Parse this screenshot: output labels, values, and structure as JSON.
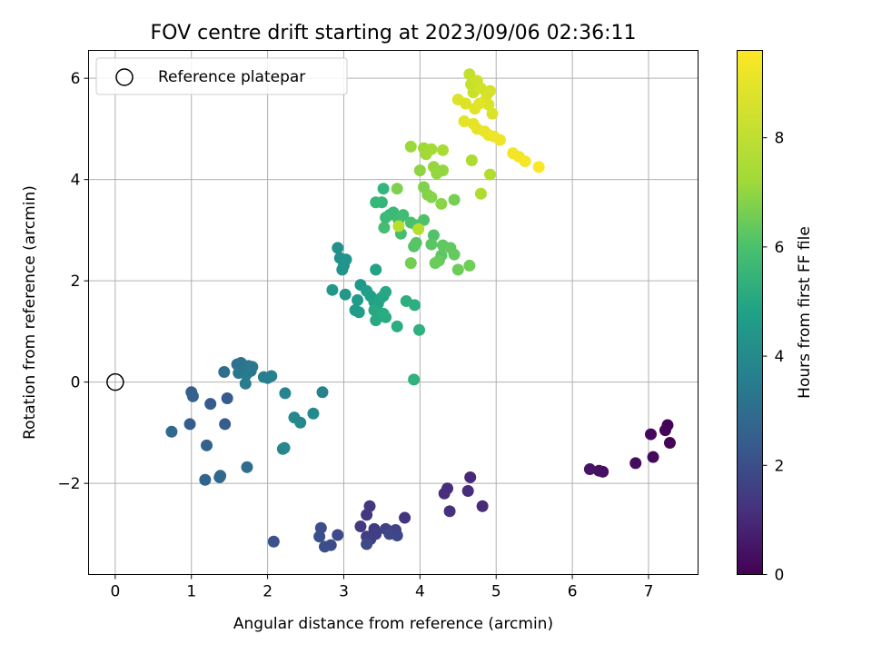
{
  "chart_data": {
    "type": "scatter",
    "title": "FOV centre drift starting at 2023/09/06 02:36:11",
    "xlabel": "Angular distance from reference (arcmin)",
    "ylabel": "Rotation from reference (arcmin)",
    "xlim": [
      -0.35,
      7.65
    ],
    "ylim": [
      -3.8,
      6.55
    ],
    "xticks": [
      "0",
      "1",
      "2",
      "3",
      "4",
      "5",
      "6",
      "7"
    ],
    "yticks": [
      "−2",
      "0",
      "2",
      "4",
      "6"
    ],
    "grid": true,
    "legend": {
      "position": "top-left",
      "entries": [
        "Reference platepar"
      ]
    },
    "reference_point": {
      "x": 0,
      "y": 0
    },
    "colorbar": {
      "label": "Hours from first FF file",
      "range": [
        0,
        9.6
      ],
      "ticks": [
        "0",
        "2",
        "4",
        "6",
        "8"
      ],
      "colormap": "viridis"
    },
    "points": [
      {
        "x": 7.25,
        "y": -0.85,
        "t": 0.05
      },
      {
        "x": 7.22,
        "y": -0.95,
        "t": 0.1
      },
      {
        "x": 7.28,
        "y": -1.2,
        "t": 0.15
      },
      {
        "x": 7.03,
        "y": -1.03,
        "t": 0.2
      },
      {
        "x": 7.06,
        "y": -1.48,
        "t": 0.25
      },
      {
        "x": 6.83,
        "y": -1.6,
        "t": 0.3
      },
      {
        "x": 6.4,
        "y": -1.77,
        "t": 0.4
      },
      {
        "x": 6.35,
        "y": -1.75,
        "t": 0.45
      },
      {
        "x": 6.23,
        "y": -1.72,
        "t": 0.5
      },
      {
        "x": 4.66,
        "y": -1.88,
        "t": 1.1
      },
      {
        "x": 4.82,
        "y": -2.45,
        "t": 1.15
      },
      {
        "x": 4.63,
        "y": -2.15,
        "t": 1.2
      },
      {
        "x": 4.36,
        "y": -2.1,
        "t": 1.25
      },
      {
        "x": 4.32,
        "y": -2.2,
        "t": 1.3
      },
      {
        "x": 4.39,
        "y": -2.55,
        "t": 1.35
      },
      {
        "x": 3.8,
        "y": -2.68,
        "t": 1.45
      },
      {
        "x": 3.34,
        "y": -2.45,
        "t": 1.5
      },
      {
        "x": 3.3,
        "y": -2.62,
        "t": 1.55
      },
      {
        "x": 3.22,
        "y": -2.85,
        "t": 1.6
      },
      {
        "x": 3.4,
        "y": -2.9,
        "t": 1.65
      },
      {
        "x": 3.3,
        "y": -3.05,
        "t": 1.7
      },
      {
        "x": 3.35,
        "y": -3.1,
        "t": 1.75
      },
      {
        "x": 3.42,
        "y": -3.0,
        "t": 1.8
      },
      {
        "x": 3.55,
        "y": -2.9,
        "t": 1.85
      },
      {
        "x": 3.62,
        "y": -2.95,
        "t": 1.9
      },
      {
        "x": 3.68,
        "y": -2.92,
        "t": 1.95
      },
      {
        "x": 3.7,
        "y": -3.03,
        "t": 2.0
      },
      {
        "x": 3.6,
        "y": -3.0,
        "t": 2.05
      },
      {
        "x": 3.3,
        "y": -3.2,
        "t": 2.1
      },
      {
        "x": 2.92,
        "y": -3.02,
        "t": 2.15
      },
      {
        "x": 2.83,
        "y": -3.22,
        "t": 2.2
      },
      {
        "x": 2.75,
        "y": -3.25,
        "t": 2.25
      },
      {
        "x": 2.7,
        "y": -2.88,
        "t": 2.3
      },
      {
        "x": 2.68,
        "y": -3.05,
        "t": 2.35
      },
      {
        "x": 2.08,
        "y": -3.15,
        "t": 2.4
      },
      {
        "x": 1.25,
        "y": -0.43,
        "t": 2.7
      },
      {
        "x": 1.47,
        "y": -0.32,
        "t": 2.75
      },
      {
        "x": 1.44,
        "y": -0.83,
        "t": 2.8
      },
      {
        "x": 0.98,
        "y": -0.83,
        "t": 2.85
      },
      {
        "x": 1.0,
        "y": -0.2,
        "t": 2.9
      },
      {
        "x": 1.02,
        "y": -0.28,
        "t": 2.95
      },
      {
        "x": 1.2,
        "y": -1.25,
        "t": 3.0
      },
      {
        "x": 1.18,
        "y": -1.93,
        "t": 3.1
      },
      {
        "x": 1.37,
        "y": -1.88,
        "t": 3.15
      },
      {
        "x": 1.38,
        "y": -1.85,
        "t": 3.2
      },
      {
        "x": 0.74,
        "y": -0.98,
        "t": 3.3
      },
      {
        "x": 1.73,
        "y": -1.68,
        "t": 3.4
      },
      {
        "x": 1.43,
        "y": 0.2,
        "t": 3.45
      },
      {
        "x": 1.6,
        "y": 0.35,
        "t": 3.55
      },
      {
        "x": 1.65,
        "y": 0.38,
        "t": 3.6
      },
      {
        "x": 1.68,
        "y": 0.25,
        "t": 3.65
      },
      {
        "x": 1.7,
        "y": 0.28,
        "t": 3.7
      },
      {
        "x": 1.62,
        "y": 0.18,
        "t": 3.75
      },
      {
        "x": 1.75,
        "y": 0.32,
        "t": 3.8
      },
      {
        "x": 1.78,
        "y": 0.22,
        "t": 3.85
      },
      {
        "x": 1.8,
        "y": 0.3,
        "t": 3.9
      },
      {
        "x": 1.72,
        "y": 0.15,
        "t": 3.95
      },
      {
        "x": 1.71,
        "y": -0.03,
        "t": 4.0
      },
      {
        "x": 1.95,
        "y": 0.1,
        "t": 4.1
      },
      {
        "x": 2.0,
        "y": 0.08,
        "t": 4.15
      },
      {
        "x": 2.05,
        "y": 0.12,
        "t": 4.2
      },
      {
        "x": 2.72,
        "y": -0.2,
        "t": 4.3
      },
      {
        "x": 2.23,
        "y": -0.22,
        "t": 4.35
      },
      {
        "x": 2.2,
        "y": -1.32,
        "t": 4.4
      },
      {
        "x": 2.22,
        "y": -1.3,
        "t": 4.45
      },
      {
        "x": 2.35,
        "y": -0.7,
        "t": 4.5
      },
      {
        "x": 2.43,
        "y": -0.8,
        "t": 4.55
      },
      {
        "x": 2.6,
        "y": -0.62,
        "t": 4.6
      },
      {
        "x": 2.92,
        "y": 2.65,
        "t": 4.8
      },
      {
        "x": 2.95,
        "y": 2.45,
        "t": 4.85
      },
      {
        "x": 3.0,
        "y": 2.3,
        "t": 4.9
      },
      {
        "x": 2.98,
        "y": 2.22,
        "t": 4.95
      },
      {
        "x": 3.03,
        "y": 2.42,
        "t": 5.0
      },
      {
        "x": 2.85,
        "y": 1.82,
        "t": 5.05
      },
      {
        "x": 3.02,
        "y": 1.73,
        "t": 5.1
      },
      {
        "x": 3.22,
        "y": 1.92,
        "t": 5.15
      },
      {
        "x": 3.18,
        "y": 1.62,
        "t": 5.2
      },
      {
        "x": 3.15,
        "y": 1.42,
        "t": 5.25
      },
      {
        "x": 3.2,
        "y": 1.38,
        "t": 5.3
      },
      {
        "x": 3.3,
        "y": 1.8,
        "t": 5.35
      },
      {
        "x": 3.35,
        "y": 1.7,
        "t": 5.4
      },
      {
        "x": 3.4,
        "y": 1.58,
        "t": 5.45
      },
      {
        "x": 3.45,
        "y": 1.55,
        "t": 5.5
      },
      {
        "x": 3.42,
        "y": 2.22,
        "t": 5.55
      },
      {
        "x": 3.48,
        "y": 1.65,
        "t": 5.6
      },
      {
        "x": 3.52,
        "y": 1.7,
        "t": 5.65
      },
      {
        "x": 3.55,
        "y": 1.78,
        "t": 5.7
      },
      {
        "x": 3.4,
        "y": 1.42,
        "t": 5.75
      },
      {
        "x": 3.42,
        "y": 1.22,
        "t": 5.8
      },
      {
        "x": 3.55,
        "y": 1.28,
        "t": 5.85
      },
      {
        "x": 3.52,
        "y": 1.35,
        "t": 5.9
      },
      {
        "x": 3.7,
        "y": 1.1,
        "t": 5.95
      },
      {
        "x": 3.82,
        "y": 1.6,
        "t": 6.0
      },
      {
        "x": 3.93,
        "y": 1.52,
        "t": 6.05
      },
      {
        "x": 3.99,
        "y": 1.03,
        "t": 6.1
      },
      {
        "x": 3.92,
        "y": 0.05,
        "t": 6.15
      },
      {
        "x": 3.52,
        "y": 3.82,
        "t": 6.3
      },
      {
        "x": 3.5,
        "y": 3.55,
        "t": 6.35
      },
      {
        "x": 3.42,
        "y": 3.55,
        "t": 6.4
      },
      {
        "x": 3.6,
        "y": 3.3,
        "t": 6.45
      },
      {
        "x": 3.65,
        "y": 3.35,
        "t": 6.5
      },
      {
        "x": 3.55,
        "y": 3.25,
        "t": 6.55
      },
      {
        "x": 3.72,
        "y": 3.2,
        "t": 6.6
      },
      {
        "x": 3.78,
        "y": 3.3,
        "t": 6.65
      },
      {
        "x": 3.53,
        "y": 3.05,
        "t": 6.7
      },
      {
        "x": 3.75,
        "y": 2.93,
        "t": 6.75
      },
      {
        "x": 3.88,
        "y": 3.15,
        "t": 6.8
      },
      {
        "x": 3.95,
        "y": 3.1,
        "t": 6.85
      },
      {
        "x": 4.05,
        "y": 3.2,
        "t": 6.9
      },
      {
        "x": 4.18,
        "y": 2.9,
        "t": 6.95
      },
      {
        "x": 3.92,
        "y": 2.68,
        "t": 7.0
      },
      {
        "x": 3.95,
        "y": 2.75,
        "t": 7.05
      },
      {
        "x": 4.15,
        "y": 2.72,
        "t": 7.1
      },
      {
        "x": 4.28,
        "y": 2.5,
        "t": 7.15
      },
      {
        "x": 4.3,
        "y": 2.7,
        "t": 7.2
      },
      {
        "x": 4.4,
        "y": 2.65,
        "t": 7.25
      },
      {
        "x": 4.45,
        "y": 2.52,
        "t": 7.3
      },
      {
        "x": 4.25,
        "y": 2.4,
        "t": 7.35
      },
      {
        "x": 4.2,
        "y": 2.35,
        "t": 7.4
      },
      {
        "x": 4.5,
        "y": 2.22,
        "t": 7.45
      },
      {
        "x": 4.65,
        "y": 2.3,
        "t": 7.5
      },
      {
        "x": 3.88,
        "y": 2.35,
        "t": 7.55
      },
      {
        "x": 4.45,
        "y": 3.6,
        "t": 7.6
      },
      {
        "x": 3.7,
        "y": 3.82,
        "t": 7.7
      },
      {
        "x": 4.05,
        "y": 3.85,
        "t": 7.75
      },
      {
        "x": 4.1,
        "y": 3.7,
        "t": 7.8
      },
      {
        "x": 4.15,
        "y": 3.65,
        "t": 7.85
      },
      {
        "x": 4.28,
        "y": 3.52,
        "t": 7.9
      },
      {
        "x": 4.0,
        "y": 4.18,
        "t": 7.95
      },
      {
        "x": 4.22,
        "y": 4.12,
        "t": 8.0
      },
      {
        "x": 4.3,
        "y": 4.18,
        "t": 8.05
      },
      {
        "x": 4.18,
        "y": 4.25,
        "t": 8.1
      },
      {
        "x": 3.88,
        "y": 4.65,
        "t": 8.15
      },
      {
        "x": 4.05,
        "y": 4.62,
        "t": 8.2
      },
      {
        "x": 4.08,
        "y": 4.5,
        "t": 8.25
      },
      {
        "x": 4.15,
        "y": 4.6,
        "t": 8.3
      },
      {
        "x": 4.3,
        "y": 4.58,
        "t": 8.35
      },
      {
        "x": 4.68,
        "y": 4.38,
        "t": 8.4
      },
      {
        "x": 4.8,
        "y": 3.72,
        "t": 8.45
      },
      {
        "x": 4.92,
        "y": 4.1,
        "t": 8.5
      },
      {
        "x": 3.98,
        "y": 3.02,
        "t": 8.55
      },
      {
        "x": 3.72,
        "y": 3.08,
        "t": 8.6
      },
      {
        "x": 4.65,
        "y": 6.08,
        "t": 8.75
      },
      {
        "x": 4.67,
        "y": 5.88,
        "t": 8.8
      },
      {
        "x": 4.7,
        "y": 5.72,
        "t": 8.85
      },
      {
        "x": 4.75,
        "y": 5.95,
        "t": 8.9
      },
      {
        "x": 4.8,
        "y": 5.8,
        "t": 8.95
      },
      {
        "x": 4.88,
        "y": 5.68,
        "t": 9.0
      },
      {
        "x": 4.92,
        "y": 5.75,
        "t": 9.02
      },
      {
        "x": 4.85,
        "y": 5.55,
        "t": 9.05
      },
      {
        "x": 4.9,
        "y": 5.48,
        "t": 9.08
      },
      {
        "x": 4.95,
        "y": 5.3,
        "t": 9.1
      },
      {
        "x": 4.5,
        "y": 5.58,
        "t": 9.12
      },
      {
        "x": 4.6,
        "y": 5.5,
        "t": 9.15
      },
      {
        "x": 4.72,
        "y": 5.4,
        "t": 9.18
      },
      {
        "x": 4.78,
        "y": 5.5,
        "t": 9.2
      },
      {
        "x": 4.58,
        "y": 5.15,
        "t": 9.22
      },
      {
        "x": 4.7,
        "y": 5.1,
        "t": 9.25
      },
      {
        "x": 4.75,
        "y": 5.0,
        "t": 9.28
      },
      {
        "x": 4.85,
        "y": 4.95,
        "t": 9.3
      },
      {
        "x": 4.9,
        "y": 4.88,
        "t": 9.33
      },
      {
        "x": 4.97,
        "y": 4.85,
        "t": 9.36
      },
      {
        "x": 5.05,
        "y": 4.78,
        "t": 9.4
      },
      {
        "x": 5.22,
        "y": 4.52,
        "t": 9.43
      },
      {
        "x": 5.3,
        "y": 4.45,
        "t": 9.46
      },
      {
        "x": 5.38,
        "y": 4.36,
        "t": 9.5
      },
      {
        "x": 5.56,
        "y": 4.25,
        "t": 9.55
      }
    ]
  }
}
